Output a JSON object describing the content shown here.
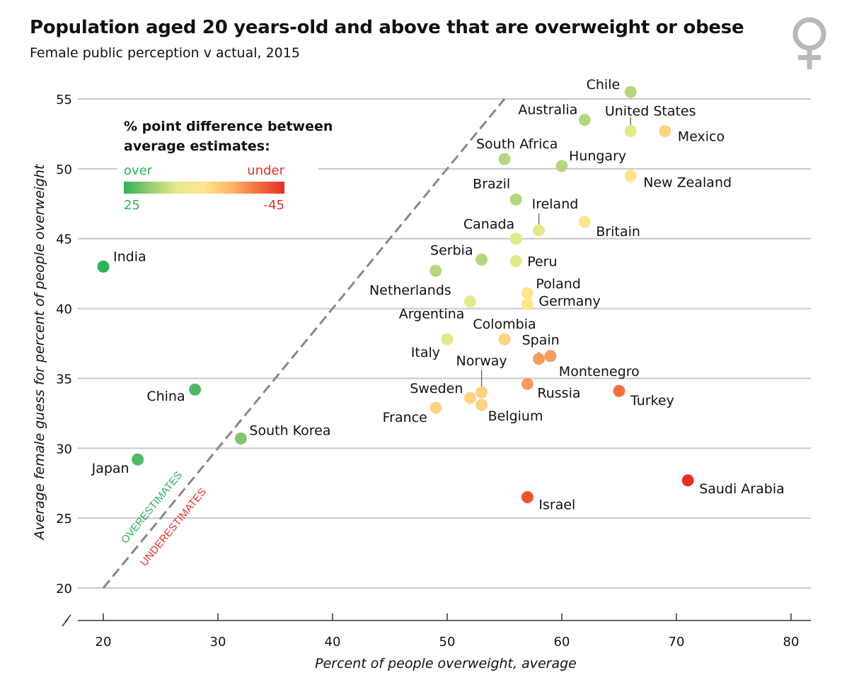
{
  "header": {
    "title": "Population aged 20 years-old and above that are overweight or obese",
    "subtitle": "Female public perception v actual, 2015"
  },
  "icon": "female-symbol-icon",
  "legend": {
    "title_line1": "% point difference between",
    "title_line2": "average estimates:",
    "over_label": "over",
    "under_label": "under",
    "min_label": "25",
    "max_label": "-45",
    "colors": [
      "#2db158",
      "#9ccc74",
      "#e6e98a",
      "#fde58d",
      "#fcb76a",
      "#f3703f",
      "#e5302c"
    ]
  },
  "diagonal": {
    "over_label": "OVERESTIMATES",
    "under_label": "UNDERESTIMATES",
    "over_color": "#2db158",
    "under_color": "#e5302c"
  },
  "chart_data": {
    "type": "scatter",
    "xlabel": "Percent of people overweight, average",
    "ylabel": "Average female guess for percent of people overweight",
    "xlim": [
      20,
      80
    ],
    "ylim": [
      20,
      55
    ],
    "xticks": [
      20,
      30,
      40,
      50,
      60,
      70,
      80
    ],
    "yticks": [
      20,
      25,
      30,
      35,
      40,
      45,
      50,
      55
    ],
    "grid": true,
    "points": [
      {
        "name": "Chile",
        "x": 66,
        "y": 55.5,
        "color": "#b5d67f",
        "anchor": "end",
        "dx": -15,
        "dy": -4
      },
      {
        "name": "Australia",
        "x": 62,
        "y": 53.5,
        "color": "#b5d67f",
        "anchor": "end",
        "dx": -10,
        "dy": -8
      },
      {
        "name": "United States",
        "x": 66,
        "y": 52.7,
        "color": "#e3e98a",
        "anchor": "middle",
        "dx": 28,
        "dy": -22
      },
      {
        "name": "Mexico",
        "x": 69,
        "y": 52.7,
        "color": "#fdd37f",
        "anchor": "start",
        "dx": 18,
        "dy": 14
      },
      {
        "name": "South Africa",
        "x": 55,
        "y": 50.7,
        "color": "#b5d67f",
        "anchor": "start",
        "dx": -40,
        "dy": -15
      },
      {
        "name": "Hungary",
        "x": 60,
        "y": 50.2,
        "color": "#b5d67f",
        "anchor": "start",
        "dx": 10,
        "dy": -8
      },
      {
        "name": "New Zealand",
        "x": 66,
        "y": 49.5,
        "color": "#fde58d",
        "anchor": "start",
        "dx": 18,
        "dy": 16
      },
      {
        "name": "Brazil",
        "x": 56,
        "y": 47.8,
        "color": "#b5d67f",
        "anchor": "end",
        "dx": -8,
        "dy": -16
      },
      {
        "name": "Ireland",
        "x": 58,
        "y": 45.6,
        "color": "#e3e98a",
        "anchor": "start",
        "dx": -10,
        "dy": -31
      },
      {
        "name": "Britain",
        "x": 62,
        "y": 46.2,
        "color": "#fde58d",
        "anchor": "start",
        "dx": 16,
        "dy": 20
      },
      {
        "name": "Canada",
        "x": 56,
        "y": 45,
        "color": "#e3e98a",
        "anchor": "end",
        "dx": -2,
        "dy": -14
      },
      {
        "name": "Serbia",
        "x": 53,
        "y": 43.5,
        "color": "#b5d67f",
        "anchor": "end",
        "dx": -12,
        "dy": -7
      },
      {
        "name": "Peru",
        "x": 56,
        "y": 43.4,
        "color": "#e3e98a",
        "anchor": "start",
        "dx": 16,
        "dy": 7
      },
      {
        "name": "Netherlands",
        "x": 49,
        "y": 42.7,
        "color": "#b5d67f",
        "anchor": "end",
        "dx": 22,
        "dy": 34
      },
      {
        "name": "Poland",
        "x": 57,
        "y": 41.1,
        "color": "#fde58d",
        "anchor": "start",
        "dx": 12,
        "dy": -7
      },
      {
        "name": "Germany",
        "x": 57,
        "y": 40.3,
        "color": "#fde58d",
        "anchor": "start",
        "dx": 16,
        "dy": 2
      },
      {
        "name": "Argentina",
        "x": 52,
        "y": 40.5,
        "color": "#e3e98a",
        "anchor": "end",
        "dx": -8,
        "dy": 24
      },
      {
        "name": "Colombia",
        "x": 55,
        "y": 37.8,
        "color": "#fdd37f",
        "anchor": "middle",
        "dx": 0,
        "dy": -15
      },
      {
        "name": "Italy",
        "x": 50,
        "y": 37.8,
        "color": "#e3e98a",
        "anchor": "end",
        "dx": -10,
        "dy": 25
      },
      {
        "name": "Spain",
        "x": 58,
        "y": 36.4,
        "color": "#f79b5c",
        "anchor": "start",
        "dx": -24,
        "dy": -20
      },
      {
        "name": "Montenegro",
        "x": 59,
        "y": 36.6,
        "color": "#f79b5c",
        "anchor": "start",
        "dx": 12,
        "dy": 28
      },
      {
        "name": "Norway",
        "x": 53,
        "y": 34,
        "color": "#fdd37f",
        "anchor": "middle",
        "dx": 0,
        "dy": -38
      },
      {
        "name": "Russia",
        "x": 57,
        "y": 34.6,
        "color": "#f79b5c",
        "anchor": "start",
        "dx": 14,
        "dy": 19
      },
      {
        "name": "Turkey",
        "x": 65,
        "y": 34.1,
        "color": "#f3703f",
        "anchor": "start",
        "dx": 16,
        "dy": 20
      },
      {
        "name": "Sweden",
        "x": 52,
        "y": 33.6,
        "color": "#fdd37f",
        "anchor": "end",
        "dx": -10,
        "dy": -7
      },
      {
        "name": "France",
        "x": 49,
        "y": 32.9,
        "color": "#fdd37f",
        "anchor": "end",
        "dx": -12,
        "dy": 20
      },
      {
        "name": "Belgium",
        "x": 53,
        "y": 33.1,
        "color": "#fdd37f",
        "anchor": "start",
        "dx": 9,
        "dy": 22
      },
      {
        "name": "India",
        "x": 20,
        "y": 43,
        "color": "#2db158",
        "anchor": "start",
        "dx": 14,
        "dy": -8
      },
      {
        "name": "China",
        "x": 28,
        "y": 34.2,
        "color": "#52b766",
        "anchor": "end",
        "dx": -14,
        "dy": 16
      },
      {
        "name": "South Korea",
        "x": 32,
        "y": 30.7,
        "color": "#80c472",
        "anchor": "start",
        "dx": 12,
        "dy": -5
      },
      {
        "name": "Japan",
        "x": 23,
        "y": 29.2,
        "color": "#52b766",
        "anchor": "end",
        "dx": -12,
        "dy": 19
      },
      {
        "name": "Saudi Arabia",
        "x": 71,
        "y": 27.7,
        "color": "#e5302c",
        "anchor": "start",
        "dx": 16,
        "dy": 18
      },
      {
        "name": "Israel",
        "x": 57,
        "y": 26.5,
        "color": "#f05133",
        "anchor": "start",
        "dx": 16,
        "dy": 17
      }
    ]
  }
}
